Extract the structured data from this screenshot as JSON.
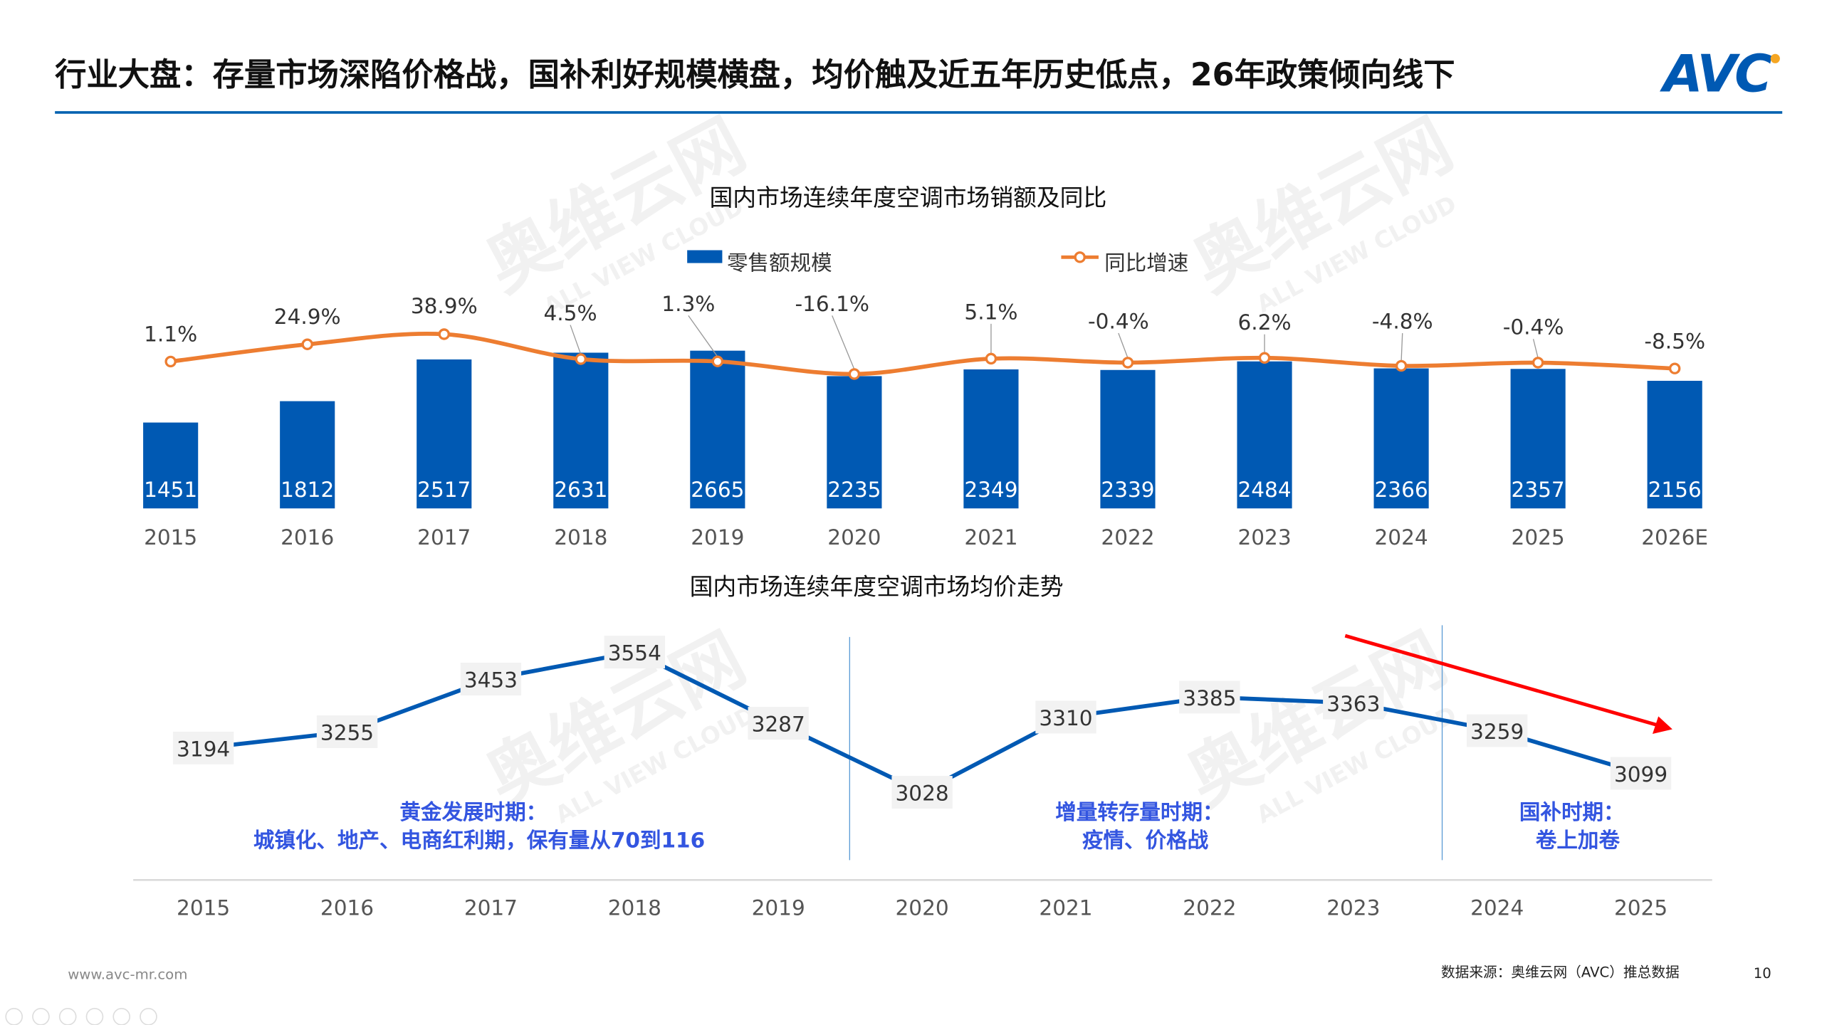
{
  "header": {
    "title": "行业大盘：存量市场深陷价格战，国补利好规模横盘，均价触及近五年历史低点，26年政策倾向线下",
    "logo_text": "AVC",
    "accent_color": "#0061b0"
  },
  "watermark": {
    "cn": "奥维云网",
    "en": "ALL VIEW CLOUD"
  },
  "chart_data": [
    {
      "type": "bar",
      "title": "国内市场连续年度空调市场销额及同比",
      "categories": [
        "2015",
        "2016",
        "2017",
        "2018",
        "2019",
        "2020",
        "2021",
        "2022",
        "2023",
        "2024",
        "2025",
        "2026E"
      ],
      "series": [
        {
          "name": "零售额规模",
          "type": "bar",
          "color": "#0059b3",
          "values": [
            1451,
            1812,
            2517,
            2631,
            2665,
            2235,
            2349,
            2339,
            2484,
            2366,
            2357,
            2156
          ]
        },
        {
          "name": "同比增速",
          "type": "line",
          "color": "#ed7d31",
          "values": [
            1.1,
            24.9,
            38.9,
            4.5,
            1.3,
            -16.1,
            5.1,
            -0.4,
            6.2,
            -4.8,
            -0.4,
            -8.5
          ],
          "labels": [
            "1.1%",
            "24.9%",
            "38.9%",
            "4.5%",
            "1.3%",
            "-16.1%",
            "5.1%",
            "-0.4%",
            "6.2%",
            "-4.8%",
            "-0.4%",
            "-8.5%"
          ]
        }
      ],
      "legend": "top"
    },
    {
      "type": "line",
      "title": "国内市场连续年度空调市场均价走势",
      "categories": [
        "2015",
        "2016",
        "2017",
        "2018",
        "2019",
        "2020",
        "2021",
        "2022",
        "2023",
        "2024",
        "2025"
      ],
      "series": [
        {
          "color": "#0059b3",
          "values": [
            3194,
            3255,
            3453,
            3554,
            3287,
            3028,
            3310,
            3385,
            3363,
            3259,
            3099
          ]
        }
      ],
      "annotations": [
        {
          "line1": "黄金发展时期：",
          "line2": "城镇化、地产、电商红利期，保有量从70到116"
        },
        {
          "line1": "增量转存量时期：",
          "line2": "疫情、价格战"
        },
        {
          "line1": "国补时期：",
          "line2": "卷上加卷"
        }
      ],
      "annotation_color": "#3355e0",
      "trend_arrow_color": "#ff0000"
    }
  ],
  "footer": {
    "website": "www.avc-mr.com",
    "source": "数据来源：奥维云网（AVC）推总数据",
    "page_number": "10"
  }
}
